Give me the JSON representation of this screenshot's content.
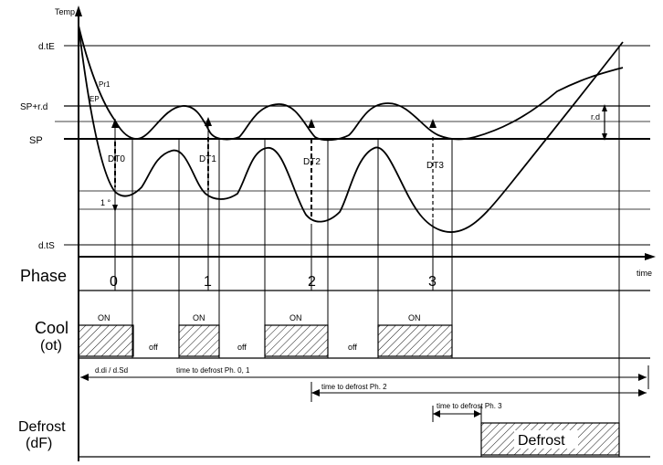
{
  "axes": {
    "y_label": "Temp.",
    "x_label": "time"
  },
  "levels": {
    "dtE": "d.tE",
    "sp_rd": "SP+r.d",
    "sp": "SP",
    "dtS": "d.tS",
    "rd": "r.d",
    "one_degree": "1 °"
  },
  "probes": {
    "pr1": "Pr1",
    "ep": "EP"
  },
  "dt_markers": [
    "DT0",
    "DT1",
    "DT2",
    "DT3"
  ],
  "phase_row": {
    "label": "Phase",
    "values": [
      "0",
      "1",
      "2",
      "3"
    ]
  },
  "cool_row": {
    "label_line1": "Cool",
    "label_line2": "(ot)",
    "on_label": "ON",
    "off_label": "off"
  },
  "timing": {
    "ddi_label": "d.di / d.Sd",
    "ph01_label": "time to defrost Ph. 0, 1",
    "ph2_label": "time to defrost Ph. 2",
    "ph3_label": "time to defrost Ph. 3"
  },
  "defrost_row": {
    "label_line1": "Defrost",
    "label_line2": "(dF)",
    "block_label": "Defrost"
  },
  "colors": {
    "line": "#000000",
    "background": "#ffffff",
    "hatch_fill": "#ffffff"
  }
}
